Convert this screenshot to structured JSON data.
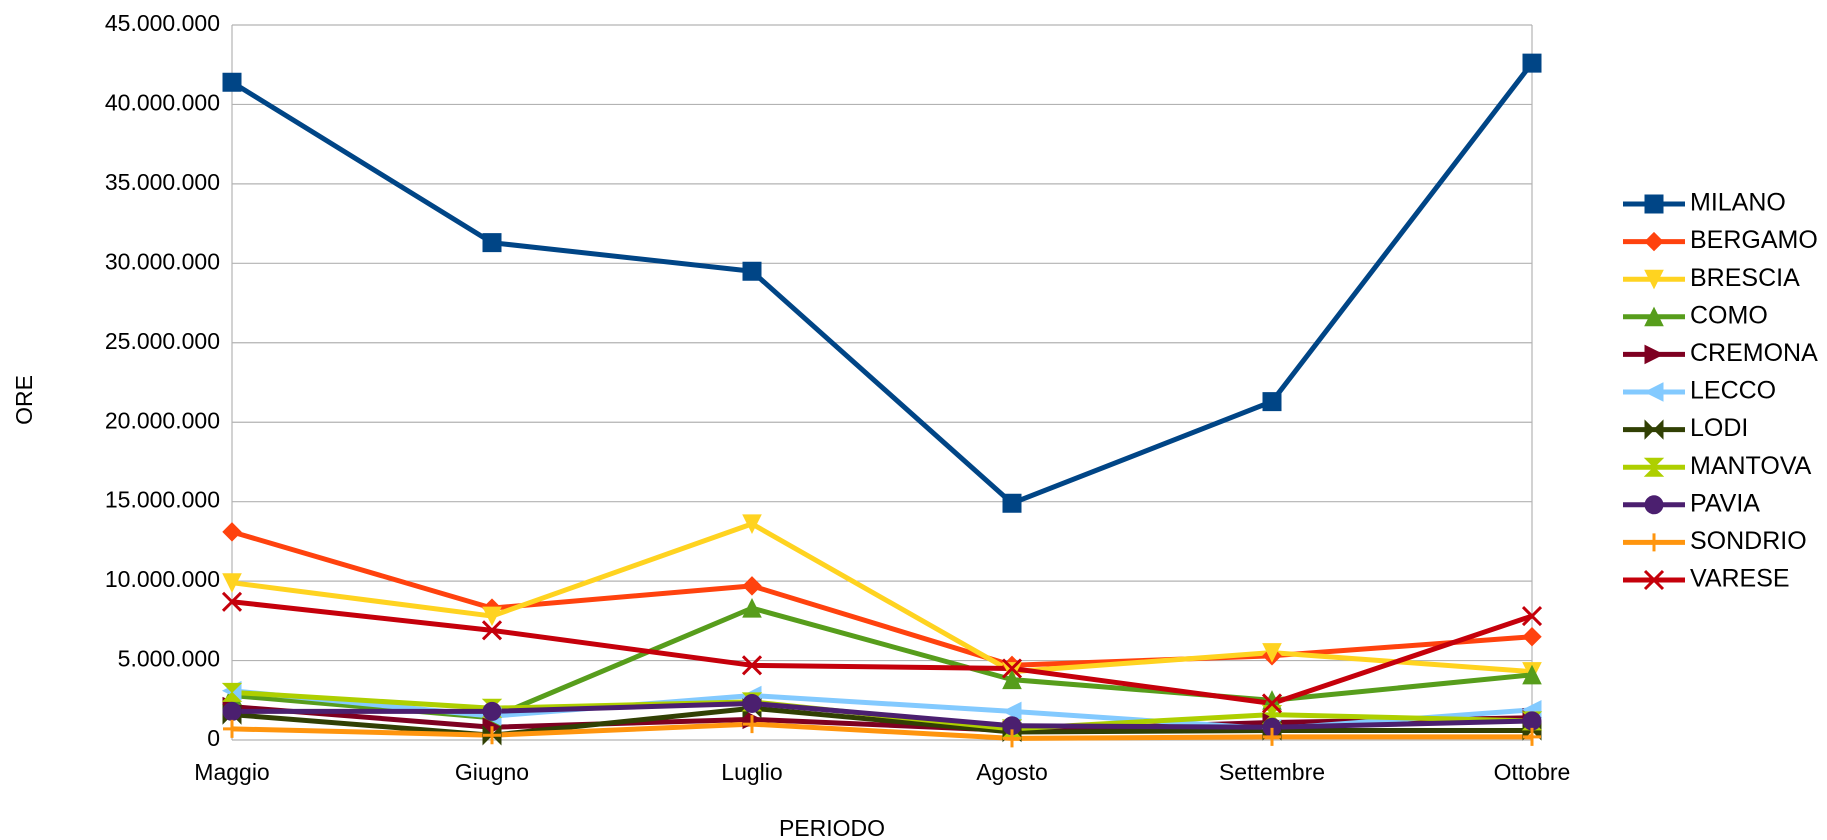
{
  "chart_data": {
    "type": "line",
    "x_label": "PERIODO",
    "y_label": "ORE",
    "categories": [
      "Maggio",
      "Giugno",
      "Luglio",
      "Agosto",
      "Settembre",
      "Ottobre"
    ],
    "ylim": [
      0,
      45000000
    ],
    "yticks": [
      0,
      {
        "value": 5000000,
        "label": "5.000.000"
      },
      {
        "value": 10000000,
        "label": "10.000.000"
      },
      {
        "value": 15000000,
        "label": "15.000.000"
      },
      {
        "value": 20000000,
        "label": "20.000.000"
      },
      {
        "value": 25000000,
        "label": "25.000.000"
      },
      {
        "value": 30000000,
        "label": "30.000.000"
      },
      {
        "value": 35000000,
        "label": "35.000.000"
      },
      {
        "value": 40000000,
        "label": "40.000.000"
      },
      {
        "value": 45000000,
        "label": "45.000.000"
      }
    ],
    "grid": true,
    "legend": "right",
    "series": [
      {
        "name": "MILANO",
        "color": "#004586",
        "marker": "square",
        "values": [
          41400000,
          31300000,
          29500000,
          14900000,
          21300000,
          42600000
        ]
      },
      {
        "name": "BERGAMO",
        "color": "#ff420e",
        "marker": "diamond",
        "values": [
          13100000,
          8300000,
          9700000,
          4700000,
          5300000,
          6500000
        ]
      },
      {
        "name": "BRESCIA",
        "color": "#ffd320",
        "marker": "triangle-down",
        "values": [
          9900000,
          7800000,
          13600000,
          4300000,
          5500000,
          4300000
        ]
      },
      {
        "name": "COMO",
        "color": "#579d1c",
        "marker": "triangle-up",
        "values": [
          2800000,
          1400000,
          8300000,
          3800000,
          2500000,
          4100000
        ]
      },
      {
        "name": "CREMONA",
        "color": "#7e0021",
        "marker": "triangle-right",
        "values": [
          2100000,
          800000,
          1300000,
          600000,
          1100000,
          1400000
        ]
      },
      {
        "name": "LECCO",
        "color": "#83caff",
        "marker": "triangle-left",
        "values": [
          3100000,
          1500000,
          2800000,
          1800000,
          700000,
          1900000
        ]
      },
      {
        "name": "LODI",
        "color": "#314004",
        "marker": "bowtie",
        "values": [
          1600000,
          300000,
          2000000,
          500000,
          600000,
          600000
        ]
      },
      {
        "name": "MANTOVA",
        "color": "#aecf00",
        "marker": "hourglass",
        "values": [
          3000000,
          2000000,
          2400000,
          700000,
          1600000,
          1200000
        ]
      },
      {
        "name": "PAVIA",
        "color": "#4b1f6f",
        "marker": "circle",
        "values": [
          1800000,
          1800000,
          2300000,
          900000,
          800000,
          1200000
        ]
      },
      {
        "name": "SONDRIO",
        "color": "#ff950e",
        "marker": "plus",
        "values": [
          700000,
          300000,
          1000000,
          100000,
          200000,
          200000
        ]
      },
      {
        "name": "VARESE",
        "color": "#c5000b",
        "marker": "cross",
        "values": [
          8700000,
          6900000,
          4700000,
          4500000,
          2300000,
          7800000
        ]
      }
    ]
  }
}
